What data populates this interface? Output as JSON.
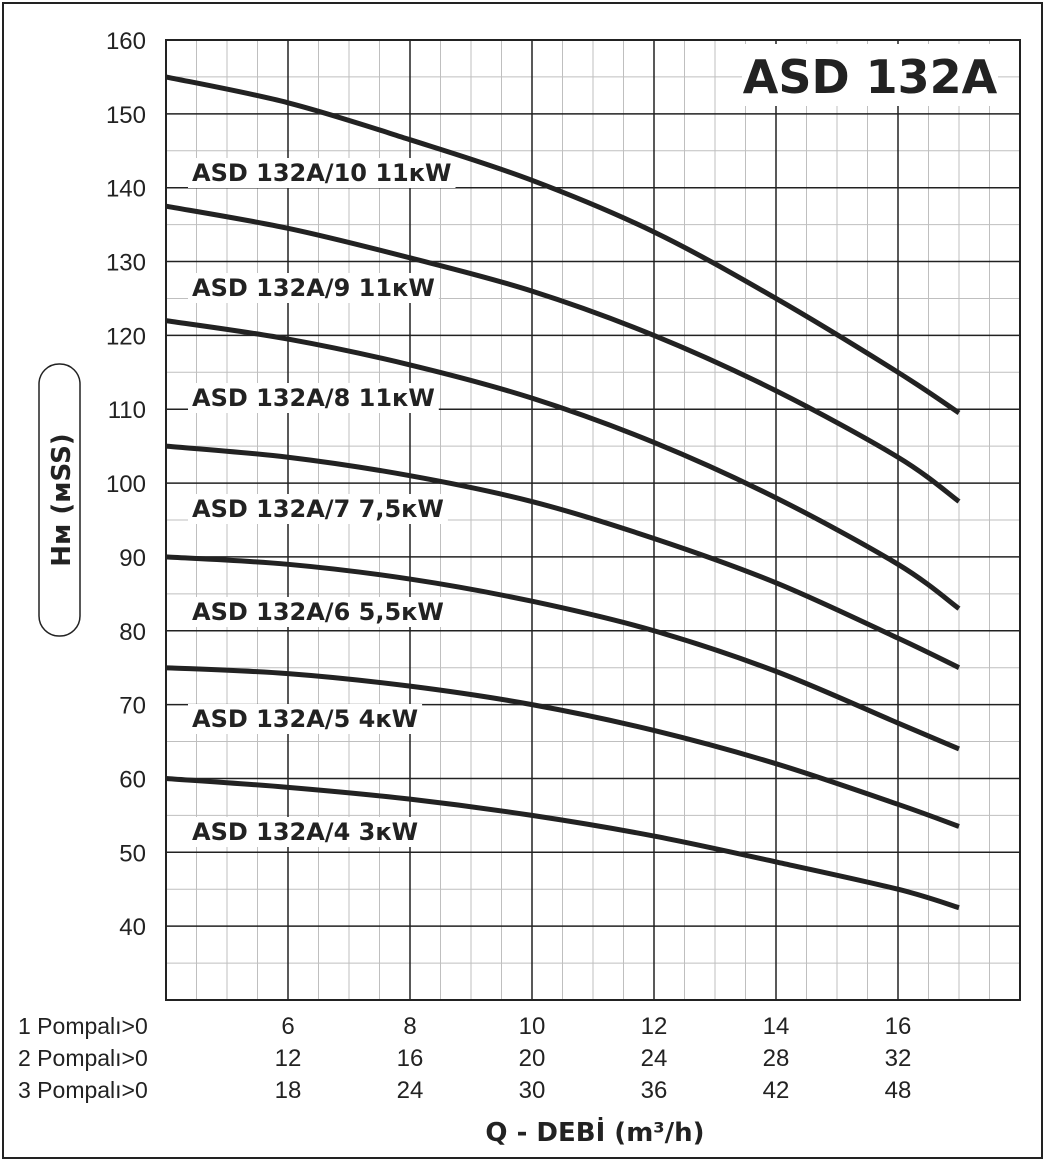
{
  "chart_data": {
    "type": "line",
    "title": "ASD 132A",
    "xlabel": "Q - DEBİ (m³/h)",
    "ylabel": "Hм (мSS)",
    "ylim": [
      30,
      160
    ],
    "xlim": [
      4,
      18
    ],
    "y_ticks": [
      "160",
      "150",
      "140",
      "130",
      "120",
      "110",
      "100",
      "90",
      "80",
      "70",
      "60",
      "50",
      "40"
    ],
    "x_axis_rows": [
      {
        "label": "1 Pompalı>0",
        "ticks": [
          "6",
          "8",
          "10",
          "12",
          "14",
          "16"
        ]
      },
      {
        "label": "2 Pompalı>0",
        "ticks": [
          "12",
          "16",
          "20",
          "24",
          "28",
          "32"
        ]
      },
      {
        "label": "3 Pompalı>0",
        "ticks": [
          "18",
          "24",
          "30",
          "36",
          "42",
          "48"
        ]
      }
    ],
    "x_tick_values": [
      6,
      8,
      10,
      12,
      14,
      16
    ],
    "grid": true,
    "series": [
      {
        "name": "ASD 132A/10 11кW",
        "x": [
          4,
          6,
          8,
          10,
          12,
          14,
          16,
          17
        ],
        "y": [
          155,
          151.5,
          146.5,
          141,
          134,
          125,
          115,
          109.5
        ]
      },
      {
        "name": "ASD 132A/9 11кW",
        "x": [
          4,
          6,
          8,
          10,
          12,
          14,
          16,
          17
        ],
        "y": [
          137.5,
          134.5,
          130.5,
          126,
          120,
          112.5,
          103.5,
          97.5
        ]
      },
      {
        "name": "ASD 132A/8 11кW",
        "x": [
          4,
          6,
          8,
          10,
          12,
          14,
          16,
          17
        ],
        "y": [
          122,
          119.5,
          116,
          111.5,
          105.5,
          98,
          89,
          83
        ]
      },
      {
        "name": "ASD 132A/7 7,5кW",
        "x": [
          4,
          6,
          8,
          10,
          12,
          14,
          16,
          17
        ],
        "y": [
          105,
          103.5,
          101,
          97.5,
          92.5,
          86.5,
          79,
          75
        ]
      },
      {
        "name": "ASD 132A/6 5,5кW",
        "x": [
          4,
          6,
          8,
          10,
          12,
          14,
          16,
          17
        ],
        "y": [
          90,
          89,
          87,
          84,
          80,
          74.5,
          67.5,
          64
        ]
      },
      {
        "name": "ASD 132A/5 4кW",
        "x": [
          4,
          6,
          8,
          10,
          12,
          14,
          16,
          17
        ],
        "y": [
          75,
          74.2,
          72.5,
          70,
          66.5,
          62,
          56.5,
          53.5
        ]
      },
      {
        "name": "ASD 132A/4 3кW",
        "x": [
          4,
          6,
          8,
          10,
          12,
          14,
          16,
          17
        ],
        "y": [
          60,
          58.8,
          57.2,
          55,
          52.2,
          48.7,
          45,
          42.5
        ]
      }
    ],
    "colors": {
      "line": "#222222",
      "grid_major": "#222222",
      "grid_minor": "#bfbfbf"
    }
  }
}
